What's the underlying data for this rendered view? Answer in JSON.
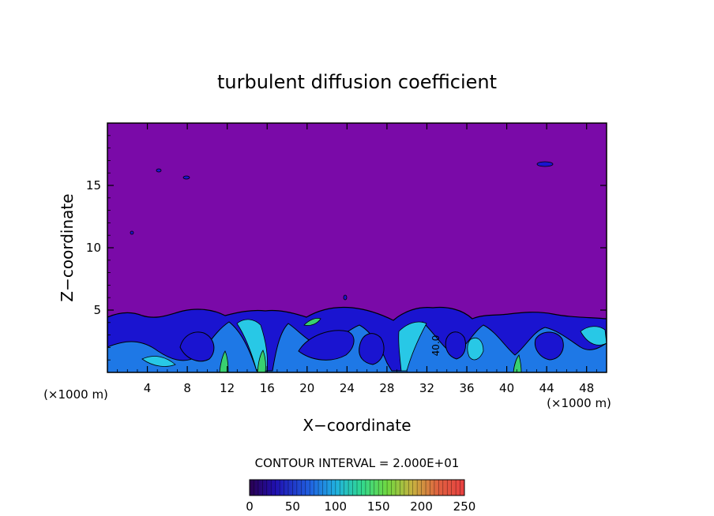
{
  "chart_data": {
    "type": "heatmap",
    "title": "turbulent diffusion coefficient",
    "xlabel": "X−coordinate",
    "ylabel": "Z−coordinate",
    "x_unit_left": "(×1000 m)",
    "x_unit_right": "(×1000 m)",
    "xlim": [
      0,
      50
    ],
    "ylim": [
      0,
      20
    ],
    "x_ticks": [
      4,
      8,
      12,
      16,
      20,
      24,
      28,
      32,
      36,
      40,
      44,
      48
    ],
    "y_ticks": [
      5,
      10,
      15
    ],
    "contour_interval_text": "CONTOUR INTERVAL = 2.000E+01",
    "contour_label": "40.0",
    "colorbar": {
      "min": 0,
      "max": 250,
      "ticks": [
        0,
        50,
        100,
        150,
        200,
        250
      ]
    },
    "background_value": 0,
    "layer_top_km": 5
  },
  "colors": {
    "background_field": "#7a0aa8",
    "layer_low": "#1a14d0",
    "layer_mid": "#1e78e6",
    "layer_high": "#28c8e6",
    "spot_green": "#38d070"
  }
}
